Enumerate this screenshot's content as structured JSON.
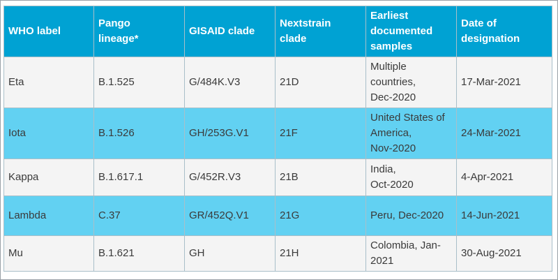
{
  "table": {
    "headers": [
      "WHO label",
      "Pango\nlineage*",
      "GISAID clade",
      "Nextstrain\nclade",
      "Earliest\ndocumented\nsamples",
      "Date of\ndesignation"
    ],
    "rows": [
      [
        "Eta",
        "B.1.525",
        "G/484K.V3",
        "21D",
        "Multiple\ncountries,\nDec-2020",
        "17-Mar-2021"
      ],
      [
        "Iota",
        "B.1.526",
        "GH/253G.V1",
        "21F",
        "United States of\nAmerica,\nNov-2020",
        "24-Mar-2021"
      ],
      [
        "Kappa",
        "B.1.617.1",
        "G/452R.V3",
        "21B",
        "India,\nOct-2020",
        "4-Apr-2021"
      ],
      [
        "Lambda",
        "C.37",
        "GR/452Q.V1",
        "21G",
        "Peru, Dec-2020",
        "14-Jun-2021"
      ],
      [
        "Mu",
        "B.1.621",
        "GH",
        "21H",
        "Colombia, Jan-\n2021",
        "30-Aug-2021"
      ]
    ]
  },
  "colors": {
    "header_bg": "#00a2d3",
    "row_light": "#f4f4f4",
    "row_blue": "#62d1f2"
  }
}
